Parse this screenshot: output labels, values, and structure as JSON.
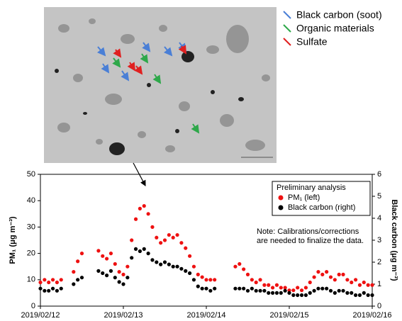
{
  "micrograph": {
    "legend": [
      {
        "label": "Black carbon (soot)",
        "color": "#4a7fd6"
      },
      {
        "label": "Organic materials",
        "color": "#2ea84a"
      },
      {
        "label": "Sulfate",
        "color": "#e02020"
      }
    ]
  },
  "chart_data": {
    "type": "scatter",
    "y_label": "PM₁ (μg m⁻³)",
    "y2_label": "Black carbon (μg m⁻³)",
    "legend_title": "Preliminary analysis",
    "annotation": [
      "Note: Calibrations/corrections",
      "are needed to finalize the data."
    ],
    "xlim": [
      0,
      4
    ],
    "xticks": [
      {
        "value": 0,
        "label": "2019/02/12"
      },
      {
        "value": 1,
        "label": "2019/02/13"
      },
      {
        "value": 2,
        "label": "2019/02/14"
      },
      {
        "value": 3,
        "label": "2019/02/15"
      },
      {
        "value": 4,
        "label": "2019/02/16"
      }
    ],
    "ylim": [
      0,
      50
    ],
    "yticks": [
      0,
      10,
      20,
      30,
      40,
      50
    ],
    "y2lim": [
      0,
      6
    ],
    "y2ticks": [
      0,
      1,
      2,
      3,
      4,
      5,
      6
    ],
    "grid": false,
    "x": [
      0,
      0.05,
      0.1,
      0.15,
      0.2,
      0.25,
      0.3,
      0.35,
      0.4,
      0.45,
      0.5,
      0.55,
      0.6,
      0.65,
      0.7,
      0.75,
      0.8,
      0.85,
      0.9,
      0.95,
      1,
      1.05,
      1.1,
      1.15,
      1.2,
      1.25,
      1.3,
      1.35,
      1.4,
      1.45,
      1.5,
      1.55,
      1.6,
      1.65,
      1.7,
      1.75,
      1.8,
      1.85,
      1.9,
      1.95,
      2,
      2.05,
      2.1,
      2.15,
      2.2,
      2.25,
      2.3,
      2.35,
      2.4,
      2.45,
      2.5,
      2.55,
      2.6,
      2.65,
      2.7,
      2.75,
      2.8,
      2.85,
      2.9,
      2.95,
      3,
      3.05,
      3.1,
      3.15,
      3.2,
      3.25,
      3.3,
      3.35,
      3.4,
      3.45,
      3.5,
      3.55,
      3.6,
      3.65,
      3.7,
      3.75,
      3.8,
      3.85,
      3.9,
      3.95,
      4
    ],
    "series": [
      {
        "name": "PM₁ (left)",
        "color": "#ee1111",
        "axis": "y",
        "values": [
          9,
          10,
          9,
          10,
          9,
          10,
          null,
          null,
          13,
          17,
          20,
          null,
          null,
          null,
          21,
          19,
          18,
          20,
          16,
          13,
          12,
          15,
          25,
          33,
          37,
          38,
          35,
          30,
          26,
          24,
          25,
          27,
          26,
          27,
          24,
          22,
          19,
          15,
          12,
          11,
          10,
          10,
          10,
          null,
          null,
          null,
          null,
          15,
          16,
          14,
          12,
          10,
          9,
          10,
          8,
          8,
          7,
          8,
          7,
          7,
          6,
          6,
          7,
          6,
          7,
          9,
          11,
          13,
          12,
          13,
          11,
          10,
          12,
          12,
          10,
          9,
          10,
          8,
          9,
          8,
          8
        ]
      },
      {
        "name": "Black carbon (right)",
        "color": "#000000",
        "axis": "y2",
        "values": [
          0.8,
          0.7,
          0.7,
          0.8,
          0.7,
          0.8,
          null,
          null,
          1.0,
          1.2,
          1.3,
          null,
          null,
          null,
          1.6,
          1.5,
          1.4,
          1.6,
          1.3,
          1.1,
          1.0,
          1.3,
          2.2,
          2.6,
          2.5,
          2.6,
          2.4,
          2.1,
          2.0,
          1.9,
          2.0,
          1.9,
          1.8,
          1.8,
          1.7,
          1.6,
          1.5,
          1.2,
          0.9,
          0.8,
          0.8,
          0.7,
          0.8,
          null,
          null,
          null,
          null,
          0.8,
          0.8,
          0.8,
          0.7,
          0.8,
          0.7,
          0.7,
          0.7,
          0.6,
          0.6,
          0.6,
          0.6,
          0.7,
          0.6,
          0.5,
          0.5,
          0.5,
          0.5,
          0.6,
          0.7,
          0.8,
          0.8,
          0.8,
          0.7,
          0.6,
          0.7,
          0.7,
          0.6,
          0.6,
          0.5,
          0.5,
          0.6,
          0.5,
          0.5
        ]
      }
    ]
  }
}
